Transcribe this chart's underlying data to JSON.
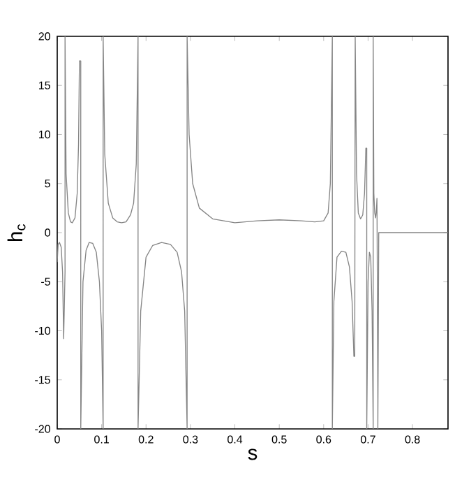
{
  "chart_data": {
    "type": "line",
    "xlabel": "s",
    "ylabel": "h$_{c}$",
    "xlim": [
      0,
      0.88
    ],
    "ylim": [
      -20,
      20
    ],
    "xticks": [
      0,
      0.1,
      0.2,
      0.3,
      0.4,
      0.5,
      0.6,
      0.7,
      0.8
    ],
    "yticks": [
      -20,
      -15,
      -10,
      -5,
      0,
      5,
      10,
      15,
      20
    ],
    "grid": false,
    "marker": "none",
    "line_style": "solid",
    "series": [
      {
        "color": "#858585",
        "x": [
          0,
          0.002,
          0.005,
          0.009,
          0.012,
          0.0145,
          0.0176,
          0.0176,
          0.02,
          0.025,
          0.03,
          0.034,
          0.04,
          0.045,
          0.048,
          0.05,
          0.053,
          0.053,
          0.058,
          0.065,
          0.072,
          0.08,
          0.088,
          0.095,
          0.1,
          0.1034,
          0.1034,
          0.107,
          0.115,
          0.125,
          0.135,
          0.145,
          0.155,
          0.165,
          0.172,
          0.178,
          0.182,
          0.182,
          0.188,
          0.2,
          0.215,
          0.235,
          0.255,
          0.27,
          0.28,
          0.287,
          0.2925,
          0.2925,
          0.297,
          0.305,
          0.32,
          0.35,
          0.4,
          0.45,
          0.5,
          0.55,
          0.58,
          0.6,
          0.61,
          0.615,
          0.6195,
          0.6195,
          0.623,
          0.63,
          0.64,
          0.65,
          0.658,
          0.664,
          0.668,
          0.67,
          0.671,
          0.674,
          0.678,
          0.683,
          0.688,
          0.692,
          0.695,
          0.697,
          0.697,
          0.7,
          0.703,
          0.706,
          0.709,
          0.7115,
          0.7115,
          0.713,
          0.715,
          0.717,
          0.719,
          0.72,
          0.722,
          0.722,
          0.724,
          0.727,
          0.75,
          0.8,
          0.88
        ],
        "values": [
          -3,
          -1.2,
          -1,
          -1.5,
          -4,
          -10.8,
          -4,
          20,
          6,
          2,
          1.1,
          1,
          1.5,
          4,
          9,
          17.5,
          17.5,
          -20,
          -5,
          -1.8,
          -1,
          -1.1,
          -2,
          -5,
          -10,
          -20,
          20,
          8,
          3,
          1.5,
          1.1,
          1,
          1.1,
          1.8,
          3,
          7,
          20,
          -20,
          -8,
          -2.5,
          -1.3,
          -1,
          -1.2,
          -2,
          -4,
          -8,
          -20,
          20,
          10,
          5,
          2.5,
          1.4,
          1,
          1.2,
          1.3,
          1.2,
          1.1,
          1.2,
          2,
          5,
          20,
          -20,
          -7,
          -2.5,
          -1.9,
          -2,
          -3.5,
          -7,
          -12.6,
          -12.6,
          20,
          6,
          2,
          1.4,
          1.8,
          4,
          8.6,
          8.6,
          -20,
          -5,
          -2,
          -2.5,
          -8,
          -20,
          20,
          4,
          2,
          1.5,
          2.5,
          3.5,
          -16.9,
          -20,
          0,
          0,
          0,
          0,
          0
        ]
      }
    ]
  }
}
